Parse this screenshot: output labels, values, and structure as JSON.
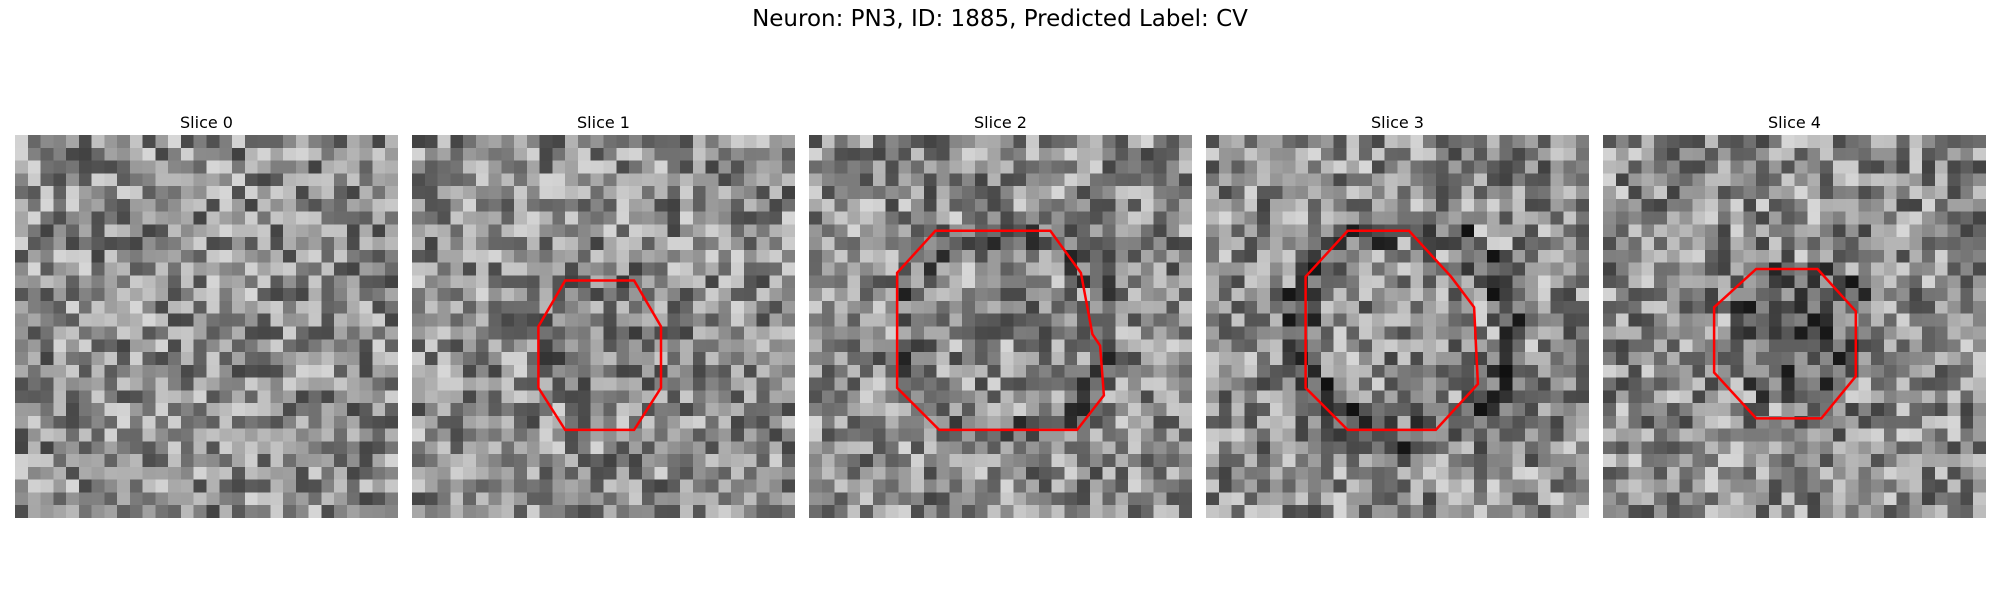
{
  "figure": {
    "title": "Neuron: PN3, ID: 1885, Predicted Label: CV"
  },
  "panels": [
    {
      "title": "Slice 0",
      "texture": "texture-grayscale-noise",
      "has_contour": false
    },
    {
      "title": "Slice 1",
      "texture": "texture-grayscale-noise",
      "has_contour": true,
      "contour": [
        [
          0.4,
          0.38
        ],
        [
          0.58,
          0.38
        ],
        [
          0.65,
          0.5
        ],
        [
          0.65,
          0.66
        ],
        [
          0.58,
          0.77
        ],
        [
          0.4,
          0.77
        ],
        [
          0.33,
          0.66
        ],
        [
          0.33,
          0.5
        ]
      ]
    },
    {
      "title": "Slice 2",
      "texture": "texture-grayscale-noise",
      "has_contour": true,
      "contour": [
        [
          0.33,
          0.25
        ],
        [
          0.63,
          0.25
        ],
        [
          0.71,
          0.36
        ],
        [
          0.74,
          0.52
        ],
        [
          0.76,
          0.55
        ],
        [
          0.77,
          0.68
        ],
        [
          0.7,
          0.77
        ],
        [
          0.34,
          0.77
        ],
        [
          0.23,
          0.66
        ],
        [
          0.23,
          0.36
        ]
      ]
    },
    {
      "title": "Slice 3",
      "texture": "texture-grayscale-noise",
      "has_contour": true,
      "contour": [
        [
          0.37,
          0.25
        ],
        [
          0.53,
          0.25
        ],
        [
          0.64,
          0.37
        ],
        [
          0.7,
          0.45
        ],
        [
          0.71,
          0.65
        ],
        [
          0.6,
          0.77
        ],
        [
          0.37,
          0.77
        ],
        [
          0.26,
          0.66
        ],
        [
          0.26,
          0.37
        ]
      ]
    },
    {
      "title": "Slice 4",
      "texture": "texture-grayscale-noise",
      "has_contour": true,
      "contour": [
        [
          0.4,
          0.35
        ],
        [
          0.56,
          0.35
        ],
        [
          0.66,
          0.46
        ],
        [
          0.66,
          0.63
        ],
        [
          0.57,
          0.74
        ],
        [
          0.4,
          0.74
        ],
        [
          0.29,
          0.62
        ],
        [
          0.29,
          0.45
        ]
      ]
    }
  ],
  "colors": {
    "contour": "#ff0000",
    "background": "#ffffff"
  }
}
